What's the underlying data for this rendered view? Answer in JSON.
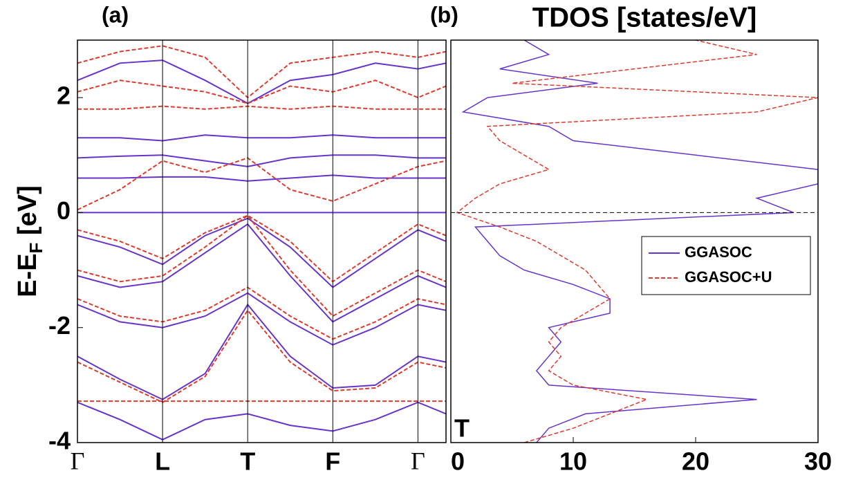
{
  "chart_data": [
    {
      "type": "line",
      "label": "(a)",
      "y_label": "E-E",
      "y_label_sub": "F",
      "y_label_unit": " [eV]",
      "x": [
        0,
        0.5,
        1,
        1.5,
        2,
        2.5,
        3,
        3.5,
        4,
        4.33
      ],
      "xlim": [
        0,
        4.33
      ],
      "xticks": [
        {
          "value": 0,
          "label": "Γ"
        },
        {
          "value": 1,
          "label": "L"
        },
        {
          "value": 2,
          "label": "T"
        },
        {
          "value": 3,
          "label": "F"
        },
        {
          "value": 4,
          "label": "Γ"
        }
      ],
      "ylim": [
        -4,
        3
      ],
      "yticks": [
        -4,
        -2,
        0,
        2
      ],
      "series": [
        {
          "color": "#6633cc",
          "dash": false,
          "values": [
            -3.3,
            -3.6,
            -3.95,
            -3.6,
            -3.5,
            -3.7,
            -3.8,
            -3.6,
            -3.3,
            -3.5
          ]
        },
        {
          "color": "#6633cc",
          "dash": false,
          "values": [
            -2.5,
            -2.9,
            -3.25,
            -2.8,
            -1.6,
            -2.5,
            -3.05,
            -3,
            -2.5,
            -2.6
          ]
        },
        {
          "color": "#6633cc",
          "dash": false,
          "values": [
            -1.6,
            -1.9,
            -2.0,
            -1.8,
            -1.4,
            -1.9,
            -2.3,
            -2,
            -1.6,
            -1.7
          ]
        },
        {
          "color": "#6633cc",
          "dash": false,
          "values": [
            -1.1,
            -1.3,
            -1.2,
            -0.7,
            -0.2,
            -1.1,
            -1.9,
            -1.5,
            -1.1,
            -1.3
          ]
        },
        {
          "color": "#6633cc",
          "dash": false,
          "values": [
            -0.4,
            -0.6,
            -0.9,
            -0.4,
            -0.1,
            -0.6,
            -1.3,
            -0.8,
            -0.3,
            -0.5
          ]
        },
        {
          "color": "#6633cc",
          "dash": false,
          "values": [
            0,
            0,
            0,
            0,
            0,
            0,
            0,
            0,
            0,
            0
          ]
        },
        {
          "color": "#6633cc",
          "dash": false,
          "values": [
            0.6,
            0.6,
            0.62,
            0.62,
            0.55,
            0.6,
            0.65,
            0.6,
            0.6,
            0.6
          ]
        },
        {
          "color": "#6633cc",
          "dash": false,
          "values": [
            0.95,
            0.98,
            1.0,
            0.9,
            0.8,
            0.95,
            1.0,
            1.0,
            0.95,
            0.95
          ]
        },
        {
          "color": "#6633cc",
          "dash": false,
          "values": [
            1.3,
            1.3,
            1.25,
            1.35,
            1.3,
            1.3,
            1.35,
            1.3,
            1.3,
            1.3
          ]
        },
        {
          "color": "#6633cc",
          "dash": false,
          "values": [
            2.3,
            2.6,
            2.65,
            2.3,
            1.9,
            2.3,
            2.4,
            2.6,
            2.5,
            2.6
          ]
        },
        {
          "color": "#e0392b",
          "dash": true,
          "values": [
            -3.28,
            -3.28,
            -3.28,
            -3.28,
            -3.28,
            -3.28,
            -3.28,
            -3.28,
            -3.28,
            -3.28
          ]
        },
        {
          "color": "#e0392b",
          "dash": true,
          "values": [
            -2.6,
            -2.95,
            -3.3,
            -2.85,
            -1.7,
            -2.6,
            -3.1,
            -3.05,
            -2.6,
            -2.7
          ]
        },
        {
          "color": "#e0392b",
          "dash": true,
          "values": [
            -1.5,
            -1.8,
            -1.9,
            -1.7,
            -1.3,
            -1.8,
            -2.2,
            -1.9,
            -1.5,
            -1.6
          ]
        },
        {
          "color": "#e0392b",
          "dash": true,
          "values": [
            -1.0,
            -1.2,
            -1.1,
            -0.6,
            -0.05,
            -1.0,
            -1.8,
            -1.4,
            -1.0,
            -1.2
          ]
        },
        {
          "color": "#e0392b",
          "dash": true,
          "values": [
            -0.3,
            -0.5,
            -0.8,
            -0.35,
            -0.05,
            -0.5,
            -1.2,
            -0.7,
            -0.2,
            -0.4
          ]
        },
        {
          "color": "#e0392b",
          "dash": true,
          "values": [
            0.05,
            0.4,
            0.9,
            0.7,
            0.95,
            0.4,
            0.2,
            0.5,
            0.8,
            0.9
          ]
        },
        {
          "color": "#e0392b",
          "dash": true,
          "values": [
            1.8,
            1.8,
            1.85,
            1.8,
            1.85,
            1.8,
            1.85,
            1.8,
            1.8,
            1.8
          ]
        },
        {
          "color": "#e0392b",
          "dash": true,
          "values": [
            2.1,
            2.3,
            2.2,
            2.1,
            1.9,
            2.2,
            2.1,
            2.3,
            2.0,
            2.2
          ]
        },
        {
          "color": "#e0392b",
          "dash": true,
          "values": [
            2.6,
            2.8,
            2.9,
            2.7,
            2.0,
            2.6,
            2.7,
            2.8,
            2.7,
            2.8
          ]
        }
      ]
    },
    {
      "type": "line",
      "orientation": "horizontal",
      "label": "(b)",
      "title": "TDOS [states/eV]",
      "annotation": "T",
      "y": [
        -4,
        -3.75,
        -3.5,
        -3.25,
        -3,
        -2.75,
        -2.5,
        -2.25,
        -2,
        -1.75,
        -1.5,
        -1.25,
        -1,
        -0.75,
        -0.5,
        -0.25,
        0,
        0.25,
        0.5,
        0.75,
        1,
        1.25,
        1.5,
        1.75,
        2,
        2.25,
        2.5,
        2.75,
        3
      ],
      "ylim": [
        -4,
        3
      ],
      "xlim": [
        0,
        30
      ],
      "xticks": [
        0,
        10,
        20,
        30
      ],
      "fermi_level": 0,
      "legend": "right",
      "series": [
        {
          "name": "GGASOC",
          "color": "#6633cc",
          "dash": false,
          "values": [
            7,
            8,
            11,
            25,
            8,
            7,
            8,
            9,
            8,
            13,
            13,
            10,
            6,
            4,
            3,
            2,
            28,
            25,
            30,
            30,
            20,
            10,
            8,
            1,
            3,
            12,
            4,
            8,
            6
          ]
        },
        {
          "name": "GGASOC+U",
          "color": "#e0392b",
          "dash": true,
          "values": [
            6,
            10,
            13,
            16,
            10,
            8,
            9,
            8,
            9,
            11,
            13,
            12,
            11,
            9,
            7,
            4,
            0.5,
            2,
            4,
            8,
            6,
            4,
            3,
            25,
            30,
            5,
            15,
            25,
            20
          ]
        }
      ]
    }
  ]
}
